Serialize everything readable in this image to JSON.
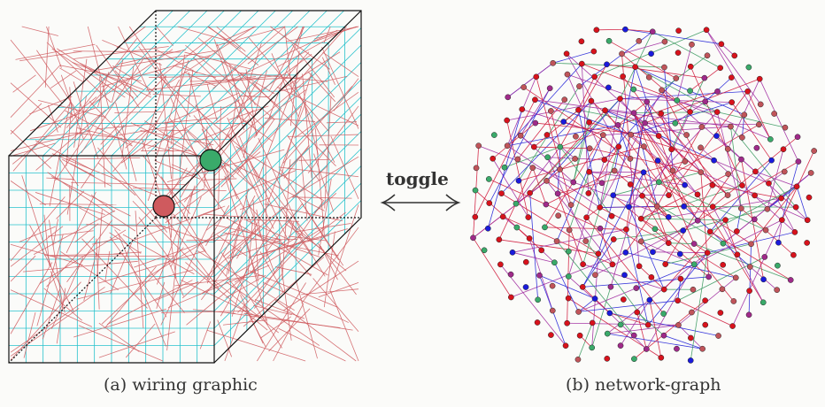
{
  "toggle": {
    "label": "toggle"
  },
  "panels": [
    {
      "caption": "(a) wiring graphic"
    },
    {
      "caption": "(b) network-graph"
    }
  ],
  "colors": {
    "wire": "#cf5a5e",
    "grid": "#28c2cc",
    "cube_edge": "#111111",
    "node_green": "#3aaa6a",
    "node_red": "#d8121c",
    "node_blue": "#1a1adc",
    "node_purple": "#a02a8a",
    "node_rose": "#c0545a",
    "edge_red": "#d0183a",
    "edge_blue": "#2424d8",
    "edge_purple": "#a02aa0",
    "edge_green": "#3a9a60"
  }
}
